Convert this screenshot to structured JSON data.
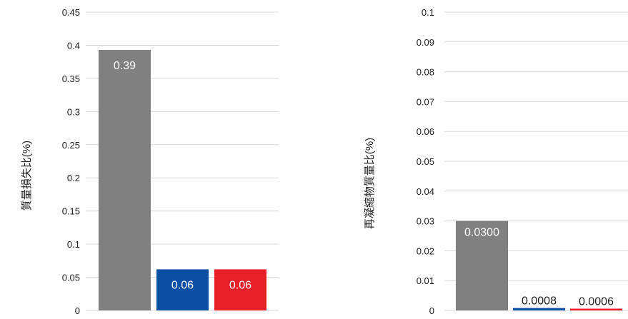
{
  "chart_data": [
    {
      "type": "bar",
      "ylabel": "質量損失比(%)",
      "ylim": [
        0,
        0.45
      ],
      "yticks": [
        "0",
        "0.05",
        "0.1",
        "0.15",
        "0.2",
        "0.25",
        "0.3",
        "0.35",
        "0.4",
        "0.45"
      ],
      "grid": true,
      "series": [
        {
          "values": [
            0.393
          ],
          "label": "0.39",
          "color": "#808080"
        },
        {
          "values": [
            0.062
          ],
          "label": "0.06",
          "color": "#0a4fa3"
        },
        {
          "values": [
            0.062
          ],
          "label": "0.06",
          "color": "#e8202a"
        }
      ]
    },
    {
      "type": "bar",
      "ylabel": "再凝縮物質量比(%)",
      "ylim": [
        0,
        0.1
      ],
      "yticks": [
        "0",
        "0.01",
        "0.02",
        "0.03",
        "0.04",
        "0.05",
        "0.06",
        "0.07",
        "0.08",
        "0.09",
        "0.1"
      ],
      "grid": true,
      "series": [
        {
          "values": [
            0.03
          ],
          "label": "0.0300",
          "color": "#808080"
        },
        {
          "values": [
            0.0008
          ],
          "label": "0.0008",
          "color": "#0a4fa3"
        },
        {
          "values": [
            0.0006
          ],
          "label": "0.0006",
          "color": "#e8202a"
        }
      ]
    }
  ]
}
